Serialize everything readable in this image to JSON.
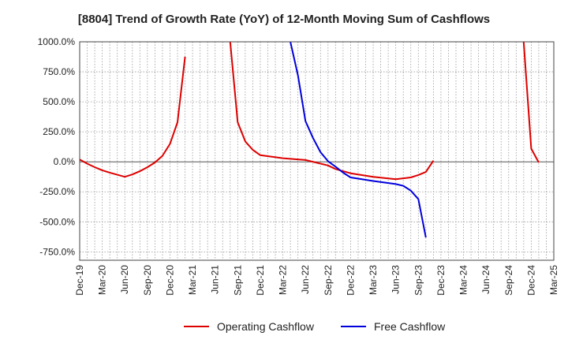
{
  "chart_data": {
    "type": "line",
    "title": "[8804]  Trend of Growth Rate (YoY) of 12-Month Moving Sum of Cashflows",
    "xlabel": "",
    "ylabel": "",
    "x_ticks": [
      "Dec-19",
      "Mar-20",
      "Jun-20",
      "Sep-20",
      "Dec-20",
      "Mar-21",
      "Jun-21",
      "Sep-21",
      "Dec-21",
      "Mar-22",
      "Jun-22",
      "Sep-22",
      "Dec-22",
      "Mar-23",
      "Jun-23",
      "Sep-23",
      "Dec-23",
      "Mar-24",
      "Jun-24",
      "Sep-24",
      "Dec-24",
      "Mar-25"
    ],
    "y_ticks": [
      "1000.0%",
      "750.0%",
      "500.0%",
      "250.0%",
      "0.0%",
      "-250.0%",
      "-500.0%",
      "-750.0%"
    ],
    "ylim": [
      -820,
      1000
    ],
    "grid": true,
    "legend_position": "bottom",
    "series": [
      {
        "name": "Operating Cashflow",
        "color": "#dd0000",
        "points": [
          [
            "Dec-19",
            20
          ],
          [
            "Jan-20",
            -15
          ],
          [
            "Feb-20",
            -45
          ],
          [
            "Mar-20",
            -70
          ],
          [
            "Apr-20",
            -90
          ],
          [
            "May-20",
            -108
          ],
          [
            "Jun-20",
            -125
          ],
          [
            "Jul-20",
            -105
          ],
          [
            "Aug-20",
            -78
          ],
          [
            "Sep-20",
            -45
          ],
          [
            "Oct-20",
            -5
          ],
          [
            "Nov-20",
            50
          ],
          [
            "Dec-20",
            150
          ],
          [
            "Jan-21",
            330
          ],
          [
            "Feb-21",
            875
          ],
          null,
          [
            "Aug-21",
            1000
          ],
          [
            "Sep-21",
            330
          ],
          [
            "Oct-21",
            170
          ],
          [
            "Nov-21",
            100
          ],
          [
            "Dec-21",
            55
          ],
          [
            "Mar-22",
            30
          ],
          [
            "Jun-22",
            15
          ],
          [
            "Sep-22",
            -30
          ],
          [
            "Oct-22",
            -60
          ],
          [
            "Dec-22",
            -95
          ],
          [
            "Mar-23",
            -125
          ],
          [
            "Jun-23",
            -145
          ],
          [
            "Aug-23",
            -130
          ],
          [
            "Sep-23",
            -110
          ],
          [
            "Oct-23",
            -85
          ],
          [
            "Nov-23",
            10
          ],
          null,
          [
            "Nov-24",
            1000
          ],
          [
            "Dec-24",
            110
          ],
          [
            "Jan-25",
            -5
          ]
        ]
      },
      {
        "name": "Free Cashflow",
        "color": "#0000dd",
        "points": [
          [
            "Apr-22",
            1000
          ],
          [
            "May-22",
            720
          ],
          [
            "Jun-22",
            340
          ],
          [
            "Jul-22",
            200
          ],
          [
            "Aug-22",
            80
          ],
          [
            "Sep-22",
            5
          ],
          [
            "Oct-22",
            -40
          ],
          [
            "Nov-22",
            -90
          ],
          [
            "Dec-22",
            -130
          ],
          [
            "Mar-23",
            -160
          ],
          [
            "Jun-23",
            -185
          ],
          [
            "Jul-23",
            -200
          ],
          [
            "Aug-23",
            -240
          ],
          [
            "Sep-23",
            -310
          ],
          [
            "Oct-23",
            -630
          ]
        ]
      }
    ]
  }
}
